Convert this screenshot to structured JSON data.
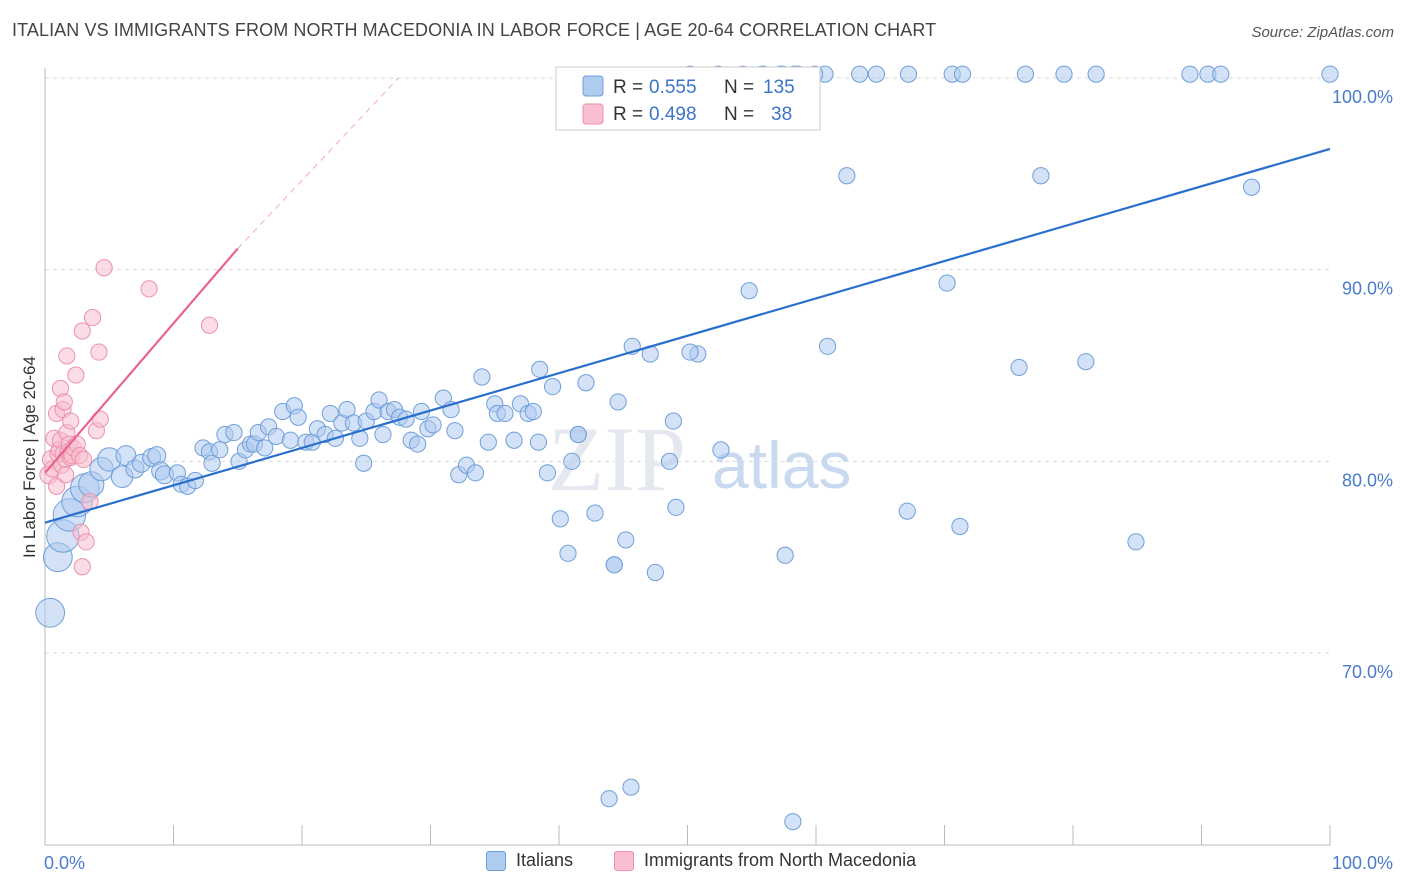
{
  "title": "ITALIAN VS IMMIGRANTS FROM NORTH MACEDONIA IN LABOR FORCE | AGE 20-64 CORRELATION CHART",
  "source": "Source: ZipAtlas.com",
  "watermark": {
    "zip": "ZIP",
    "atlas": "atlas"
  },
  "colors": {
    "blue_fill": "#aecbf0",
    "blue_stroke": "#6f9fd8",
    "blue_line": "#2a6fcc",
    "pink_fill": "#f7bfd0",
    "pink_stroke": "#ec91ad",
    "pink_line": "#e8648f",
    "grid": "#d9d9d9",
    "tick_label": "#4a7cc9"
  },
  "chart_data": {
    "type": "scatter",
    "xlabel": "",
    "ylabel": "In Labor Force | Age 20-64",
    "xlim": [
      0,
      100
    ],
    "ylim": [
      60,
      100
    ],
    "x_tick_labels": [
      "0.0%",
      "100.0%"
    ],
    "y_ticks": [
      {
        "value": 100,
        "label": "100.0%"
      },
      {
        "value": 90,
        "label": "90.0%"
      },
      {
        "value": 80,
        "label": "80.0%"
      },
      {
        "value": 70,
        "label": "70.0%"
      }
    ],
    "legend_stats": [
      {
        "r_label": "R =",
        "r_value": "0.555",
        "n_label": "N =",
        "n_value": "135"
      },
      {
        "r_label": "R =",
        "r_value": "0.498",
        "n_label": "N =",
        "n_value": "38"
      }
    ],
    "series": [
      {
        "name": "Italians",
        "color": "#aecbf0",
        "trend": {
          "x": [
            0,
            100
          ],
          "y": [
            76.8,
            96.3
          ]
        },
        "points": [
          [
            0.4,
            72.1,
            1.6
          ],
          [
            1.0,
            75.0,
            1.6
          ],
          [
            1.4,
            76.1,
            1.8
          ],
          [
            1.9,
            77.2,
            1.8
          ],
          [
            2.5,
            77.9,
            1.7
          ],
          [
            3.1,
            78.6,
            1.6
          ],
          [
            3.6,
            78.8,
            1.4
          ],
          [
            4.4,
            79.6,
            1.3
          ],
          [
            5.0,
            80.1,
            1.3
          ],
          [
            6.0,
            79.2,
            1.2
          ],
          [
            6.3,
            80.3,
            1.1
          ],
          [
            7.0,
            79.6,
            1.0
          ],
          [
            7.5,
            79.9,
            1.0
          ],
          [
            8.3,
            80.2,
            1.0
          ],
          [
            8.7,
            80.3,
            1.0
          ],
          [
            9.0,
            79.5,
            1.0
          ],
          [
            9.3,
            79.3,
            1.0
          ],
          [
            10.3,
            79.4,
            0.9
          ],
          [
            10.6,
            78.8,
            0.9
          ],
          [
            11.1,
            78.7,
            0.9
          ],
          [
            11.7,
            79.0,
            0.9
          ],
          [
            12.3,
            80.7,
            0.9
          ],
          [
            12.8,
            80.5,
            0.9
          ],
          [
            13.0,
            79.9,
            0.9
          ],
          [
            13.6,
            80.6,
            0.9
          ],
          [
            14.0,
            81.4,
            0.9
          ],
          [
            14.7,
            81.5,
            0.9
          ],
          [
            15.1,
            80.0,
            0.9
          ],
          [
            15.6,
            80.6,
            0.9
          ],
          [
            16.0,
            80.9,
            0.9
          ],
          [
            16.3,
            80.9,
            0.9
          ],
          [
            16.6,
            81.5,
            0.9
          ],
          [
            17.1,
            80.7,
            0.9
          ],
          [
            17.4,
            81.8,
            0.9
          ],
          [
            18.0,
            81.3,
            0.9
          ],
          [
            18.5,
            82.6,
            0.9
          ],
          [
            19.1,
            81.1,
            0.9
          ],
          [
            19.4,
            82.9,
            0.9
          ],
          [
            19.7,
            82.3,
            0.9
          ],
          [
            20.3,
            81.0,
            0.9
          ],
          [
            20.8,
            81.0,
            0.9
          ],
          [
            21.2,
            81.7,
            0.9
          ],
          [
            21.8,
            81.4,
            0.9
          ],
          [
            22.2,
            82.5,
            0.9
          ],
          [
            22.6,
            81.2,
            0.9
          ],
          [
            23.1,
            82.0,
            0.9
          ],
          [
            23.5,
            82.7,
            0.9
          ],
          [
            24.0,
            82.0,
            0.9
          ],
          [
            24.5,
            81.2,
            0.9
          ],
          [
            25.0,
            82.1,
            0.9
          ],
          [
            25.6,
            82.6,
            0.9
          ],
          [
            26.0,
            83.2,
            0.9
          ],
          [
            26.3,
            81.4,
            0.9
          ],
          [
            26.7,
            82.6,
            0.9
          ],
          [
            27.2,
            82.7,
            0.9
          ],
          [
            27.6,
            82.3,
            0.9
          ],
          [
            28.1,
            82.2,
            0.9
          ],
          [
            28.5,
            81.1,
            0.9
          ],
          [
            29.0,
            80.9,
            0.9
          ],
          [
            29.3,
            82.6,
            0.9
          ],
          [
            29.8,
            81.7,
            0.9
          ],
          [
            30.2,
            81.9,
            0.9
          ],
          [
            31.0,
            83.3,
            0.9
          ],
          [
            31.6,
            82.7,
            0.9
          ],
          [
            31.9,
            81.6,
            0.9
          ],
          [
            32.2,
            79.3,
            0.9
          ],
          [
            32.8,
            79.8,
            0.9
          ],
          [
            33.5,
            79.4,
            0.9
          ],
          [
            34.0,
            84.4,
            0.9
          ],
          [
            34.5,
            81.0,
            0.9
          ],
          [
            35.0,
            83.0,
            0.9
          ],
          [
            35.2,
            82.5,
            0.9
          ],
          [
            35.8,
            82.5,
            0.9
          ],
          [
            36.5,
            81.1,
            0.9
          ],
          [
            37.0,
            83.0,
            0.9
          ],
          [
            37.6,
            82.5,
            0.9
          ],
          [
            38.0,
            82.6,
            0.9
          ],
          [
            38.4,
            81.0,
            0.9
          ],
          [
            38.5,
            84.8,
            0.9
          ],
          [
            39.1,
            79.4,
            0.9
          ],
          [
            39.5,
            83.9,
            0.9
          ],
          [
            40.1,
            77.0,
            0.9
          ],
          [
            40.7,
            75.2,
            0.9
          ],
          [
            41.0,
            80.0,
            0.9
          ],
          [
            41.5,
            81.4,
            0.9
          ],
          [
            42.1,
            84.1,
            0.9
          ],
          [
            42.8,
            77.3,
            0.9
          ],
          [
            44.3,
            74.6,
            0.9
          ],
          [
            44.6,
            83.1,
            0.9
          ],
          [
            45.2,
            75.9,
            0.9
          ],
          [
            45.7,
            86.0,
            0.9
          ],
          [
            47.1,
            85.6,
            0.9
          ],
          [
            47.5,
            74.2,
            0.9
          ],
          [
            48.6,
            80.0,
            0.9
          ],
          [
            48.9,
            82.1,
            0.9
          ],
          [
            49.1,
            77.6,
            0.9
          ],
          [
            50.8,
            85.6,
            0.9
          ],
          [
            52.6,
            80.6,
            0.9
          ],
          [
            54.8,
            88.9,
            0.9
          ],
          [
            57.6,
            75.1,
            0.9
          ],
          [
            60.9,
            86.0,
            0.9
          ],
          [
            67.1,
            77.4,
            0.9
          ],
          [
            70.2,
            89.3,
            0.9
          ],
          [
            71.2,
            76.6,
            0.9
          ],
          [
            75.8,
            84.9,
            0.9
          ],
          [
            77.5,
            94.9,
            0.9
          ],
          [
            81.0,
            85.2,
            0.9
          ],
          [
            84.9,
            75.8,
            0.9
          ],
          [
            93.9,
            94.3,
            0.9
          ],
          [
            50.2,
            85.7,
            0.9
          ],
          [
            44.3,
            74.6,
            0.9
          ],
          [
            24.8,
            79.9,
            0.9
          ],
          [
            62.4,
            94.9,
            0.9
          ],
          [
            41.5,
            81.4,
            0.9
          ],
          [
            52.4,
            100.2,
            0.9
          ],
          [
            54.3,
            100.2,
            0.9
          ],
          [
            55.9,
            100.2,
            0.9
          ],
          [
            57.2,
            100.2,
            0.9
          ],
          [
            58.3,
            100.2,
            0.9
          ],
          [
            60.7,
            100.2,
            0.9
          ],
          [
            63.4,
            100.2,
            0.9
          ],
          [
            64.7,
            100.2,
            0.9
          ],
          [
            67.2,
            100.2,
            0.9
          ],
          [
            70.6,
            100.2,
            0.9
          ],
          [
            71.4,
            100.2,
            0.9
          ],
          [
            76.3,
            100.2,
            0.9
          ],
          [
            79.3,
            100.2,
            0.9
          ],
          [
            81.8,
            100.2,
            0.9
          ],
          [
            89.1,
            100.2,
            0.9
          ],
          [
            90.5,
            100.2,
            0.9
          ],
          [
            91.5,
            100.2,
            0.9
          ],
          [
            100.0,
            100.2,
            0.9
          ],
          [
            59.9,
            100.2,
            0.9
          ],
          [
            58.6,
            100.2,
            0.9
          ],
          [
            57.4,
            100.2,
            0.9
          ],
          [
            55.8,
            100.2,
            0.9
          ],
          [
            50.2,
            100.2,
            0.9
          ],
          [
            58.2,
            61.2,
            0.9
          ],
          [
            43.9,
            62.4,
            0.9
          ],
          [
            45.6,
            63.0,
            0.9
          ]
        ]
      },
      {
        "name": "Immigrants from North Macedonia",
        "color": "#f7bfd0",
        "trend": {
          "x": [
            0,
            15.0
          ],
          "y": [
            79.4,
            91.1
          ]
        },
        "trend_extension": {
          "x": [
            15.0,
            27.5
          ],
          "y": [
            91.1,
            100.0
          ]
        },
        "points": [
          [
            0.3,
            79.3,
            1.0
          ],
          [
            0.5,
            80.1,
            1.0
          ],
          [
            0.6,
            79.6,
            0.9
          ],
          [
            0.7,
            81.2,
            0.9
          ],
          [
            0.9,
            78.7,
            0.9
          ],
          [
            0.9,
            82.5,
            0.9
          ],
          [
            1.0,
            80.4,
            0.9
          ],
          [
            1.1,
            80.6,
            0.9
          ],
          [
            1.2,
            81.1,
            0.9
          ],
          [
            1.2,
            83.8,
            0.9
          ],
          [
            1.3,
            79.8,
            0.9
          ],
          [
            1.4,
            80.4,
            0.9
          ],
          [
            1.4,
            82.7,
            0.9
          ],
          [
            1.5,
            83.1,
            0.9
          ],
          [
            1.6,
            80.1,
            0.9
          ],
          [
            1.6,
            79.3,
            0.9
          ],
          [
            1.7,
            81.5,
            0.9
          ],
          [
            1.7,
            85.5,
            0.9
          ],
          [
            1.8,
            80.5,
            0.9
          ],
          [
            1.9,
            80.9,
            0.9
          ],
          [
            2.0,
            80.2,
            0.9
          ],
          [
            2.0,
            82.1,
            0.9
          ],
          [
            2.1,
            80.3,
            0.9
          ],
          [
            2.2,
            80.7,
            0.9
          ],
          [
            2.4,
            84.5,
            0.9
          ],
          [
            2.5,
            80.9,
            0.9
          ],
          [
            2.7,
            80.3,
            0.9
          ],
          [
            2.8,
            76.3,
            0.9
          ],
          [
            2.9,
            86.8,
            0.9
          ],
          [
            2.9,
            74.5,
            0.9
          ],
          [
            3.0,
            80.1,
            0.9
          ],
          [
            3.2,
            75.8,
            0.9
          ],
          [
            3.5,
            77.9,
            0.9
          ],
          [
            3.7,
            87.5,
            0.9
          ],
          [
            4.0,
            81.6,
            0.9
          ],
          [
            4.2,
            85.7,
            0.9
          ],
          [
            4.3,
            82.2,
            0.9
          ],
          [
            4.6,
            90.1,
            0.9
          ],
          [
            8.1,
            89.0,
            0.9
          ],
          [
            12.8,
            87.1,
            0.9
          ]
        ]
      }
    ]
  }
}
